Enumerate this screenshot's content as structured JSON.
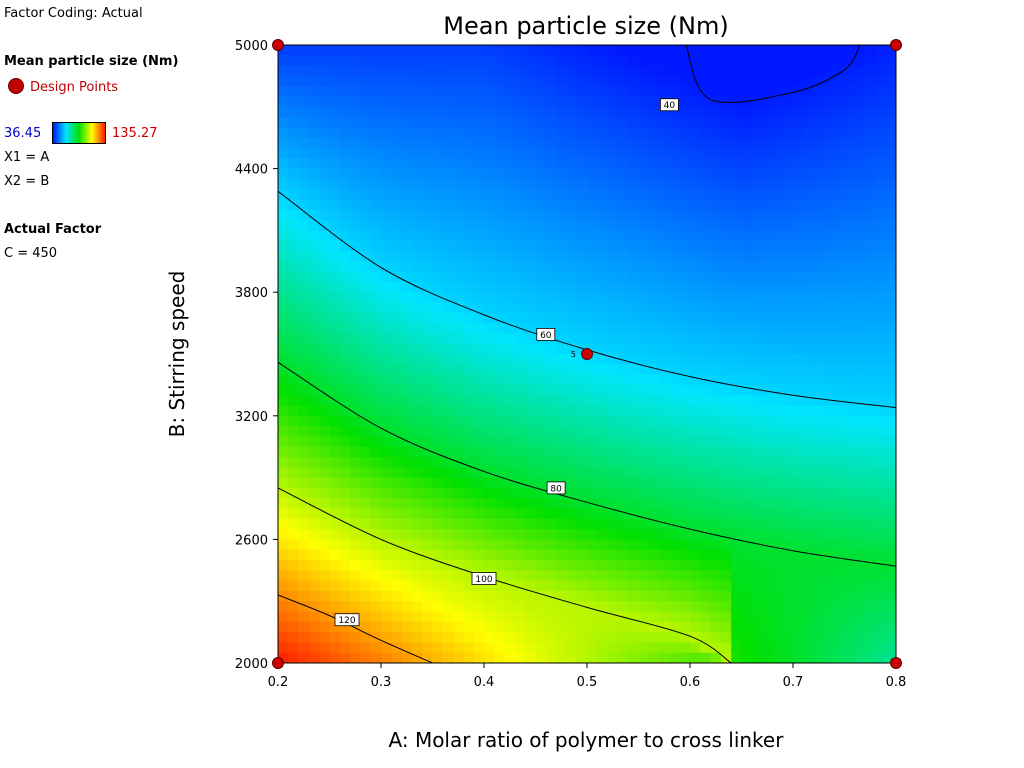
{
  "factor_coding": "Factor Coding: Actual",
  "legend": {
    "response_title": "Mean particle size (Nm)",
    "design_points_label": "Design Points",
    "min_value": "36.45",
    "max_value": "135.27",
    "min_color": "#0000cc",
    "max_color": "#cc0000",
    "x1": "X1 = A",
    "x2": "X2 = B",
    "actual_factor_title": "Actual Factor",
    "actual_factor_value": "C = 450"
  },
  "chart_data": {
    "type": "contour",
    "title": "Mean particle size (Nm)",
    "xlabel": "A: Molar ratio of polymer to cross linker",
    "ylabel": "B: Stirring speed",
    "xlim": [
      0.2,
      0.8
    ],
    "ylim": [
      2000,
      5000
    ],
    "xticks": [
      "0.2",
      "0.3",
      "0.4",
      "0.5",
      "0.6",
      "0.7",
      "0.8"
    ],
    "yticks": [
      "2000",
      "2600",
      "3200",
      "3800",
      "4400",
      "5000"
    ],
    "colorscale": [
      "#0018ff",
      "#00e6ff",
      "#00e000",
      "#ffff00",
      "#ff1a00"
    ],
    "z_range": [
      36.45,
      135.27
    ],
    "contour_levels": [
      {
        "label": "40",
        "points": [
          [
            0.596,
            5000
          ],
          [
            0.62,
            4735
          ],
          [
            0.7,
            4770
          ],
          [
            0.75,
            4880
          ],
          [
            0.765,
            5000
          ]
        ],
        "label_at": [
          0.58,
          4710
        ]
      },
      {
        "label": "60",
        "points": [
          [
            0.2,
            4290
          ],
          [
            0.3,
            3920
          ],
          [
            0.4,
            3690
          ],
          [
            0.5,
            3520
          ],
          [
            0.6,
            3390
          ],
          [
            0.7,
            3300
          ],
          [
            0.8,
            3240
          ]
        ],
        "label_at": [
          0.46,
          3595
        ]
      },
      {
        "label": "80",
        "points": [
          [
            0.2,
            3460
          ],
          [
            0.3,
            3140
          ],
          [
            0.4,
            2930
          ],
          [
            0.5,
            2780
          ],
          [
            0.6,
            2650
          ],
          [
            0.7,
            2545
          ],
          [
            0.8,
            2470
          ]
        ],
        "label_at": [
          0.47,
          2850
        ]
      },
      {
        "label": "100",
        "points": [
          [
            0.2,
            2850
          ],
          [
            0.3,
            2600
          ],
          [
            0.4,
            2420
          ],
          [
            0.5,
            2270
          ],
          [
            0.6,
            2130
          ],
          [
            0.64,
            2000
          ]
        ],
        "label_at": [
          0.4,
          2410
        ]
      },
      {
        "label": "120",
        "points": [
          [
            0.2,
            2330
          ],
          [
            0.25,
            2230
          ],
          [
            0.3,
            2110
          ],
          [
            0.35,
            2000
          ]
        ],
        "label_at": [
          0.267,
          2210
        ]
      }
    ],
    "design_points": [
      {
        "x": 0.2,
        "y": 5000,
        "label": ""
      },
      {
        "x": 0.8,
        "y": 5000,
        "label": ""
      },
      {
        "x": 0.5,
        "y": 3500,
        "label": "5"
      },
      {
        "x": 0.2,
        "y": 2000,
        "label": ""
      },
      {
        "x": 0.8,
        "y": 2000,
        "label": ""
      }
    ]
  }
}
